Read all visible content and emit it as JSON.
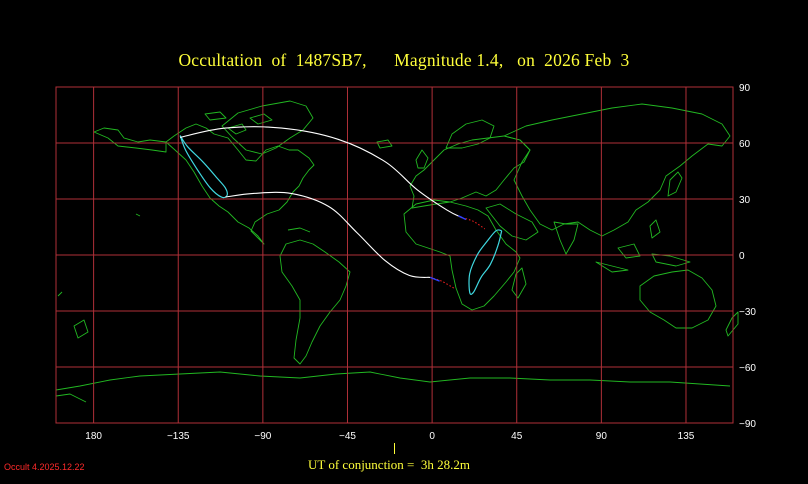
{
  "title": "Occultation  of  1487SB7,      Magnitude 1.4,   on  2026 Feb  3",
  "ut_conjunction": "UT of conjunction =  3h 28.2m",
  "version": "Occult 4.2025.12.22",
  "map": {
    "projection": "equirectangular",
    "lon_range": [
      -200,
      160
    ],
    "lat_range": [
      -90,
      90
    ],
    "lon_gridlines": [
      -180,
      -135,
      -90,
      -45,
      0,
      45,
      90,
      135
    ],
    "lat_gridlines": [
      -90,
      -60,
      -30,
      0,
      30,
      60,
      90
    ],
    "lon_tick_labels": [
      "180",
      "−135",
      "−90",
      "−45",
      "0",
      "45",
      "90",
      "135"
    ],
    "lat_tick_labels": [
      "90",
      "60",
      "30",
      "0",
      "−30",
      "−60",
      "−90"
    ],
    "colors": {
      "background": "#000000",
      "grid": "#b03038",
      "coastline": "#22b822",
      "path": "#ffffff",
      "limit_ellipse": "#3fd8e0",
      "path_dotted_red": "#ff2020",
      "path_dotted_blue": "#3040ff",
      "text": "#ffff3a"
    },
    "path_north": [
      [
        -134,
        63
      ],
      [
        -110,
        68
      ],
      [
        -80,
        68
      ],
      [
        -50,
        62
      ],
      [
        -25,
        50
      ],
      [
        -8,
        35
      ],
      [
        8,
        24
      ],
      [
        16,
        20
      ]
    ],
    "path_south": [
      [
        -110,
        31
      ],
      [
        -95,
        33
      ],
      [
        -75,
        33
      ],
      [
        -55,
        26
      ],
      [
        -40,
        12
      ],
      [
        -25,
        -3
      ],
      [
        -12,
        -11
      ],
      [
        -1,
        -12
      ]
    ],
    "dotted_north_red": [
      [
        16,
        20
      ],
      [
        22,
        18
      ],
      [
        28,
        14
      ]
    ],
    "dotted_north_blue": [
      [
        14,
        21
      ],
      [
        18,
        19
      ]
    ],
    "dotted_south_red": [
      [
        -1,
        -12
      ],
      [
        5,
        -14
      ],
      [
        12,
        -18
      ]
    ],
    "dotted_south_blue": [
      [
        -1,
        -12
      ],
      [
        4,
        -14
      ]
    ],
    "ellipse_west": [
      [
        -134,
        64
      ],
      [
        -130,
        58
      ],
      [
        -122,
        50
      ],
      [
        -115,
        42
      ],
      [
        -110,
        36
      ],
      [
        -109,
        32
      ],
      [
        -112,
        31
      ],
      [
        -118,
        36
      ],
      [
        -125,
        46
      ],
      [
        -131,
        56
      ],
      [
        -134,
        64
      ]
    ],
    "ellipse_africa": [
      [
        37,
        13
      ],
      [
        35,
        5
      ],
      [
        31,
        -5
      ],
      [
        26,
        -12
      ],
      [
        22,
        -20
      ],
      [
        20,
        -20
      ],
      [
        20,
        -10
      ],
      [
        24,
        0
      ],
      [
        29,
        7
      ],
      [
        34,
        13
      ],
      [
        37,
        13
      ]
    ]
  }
}
